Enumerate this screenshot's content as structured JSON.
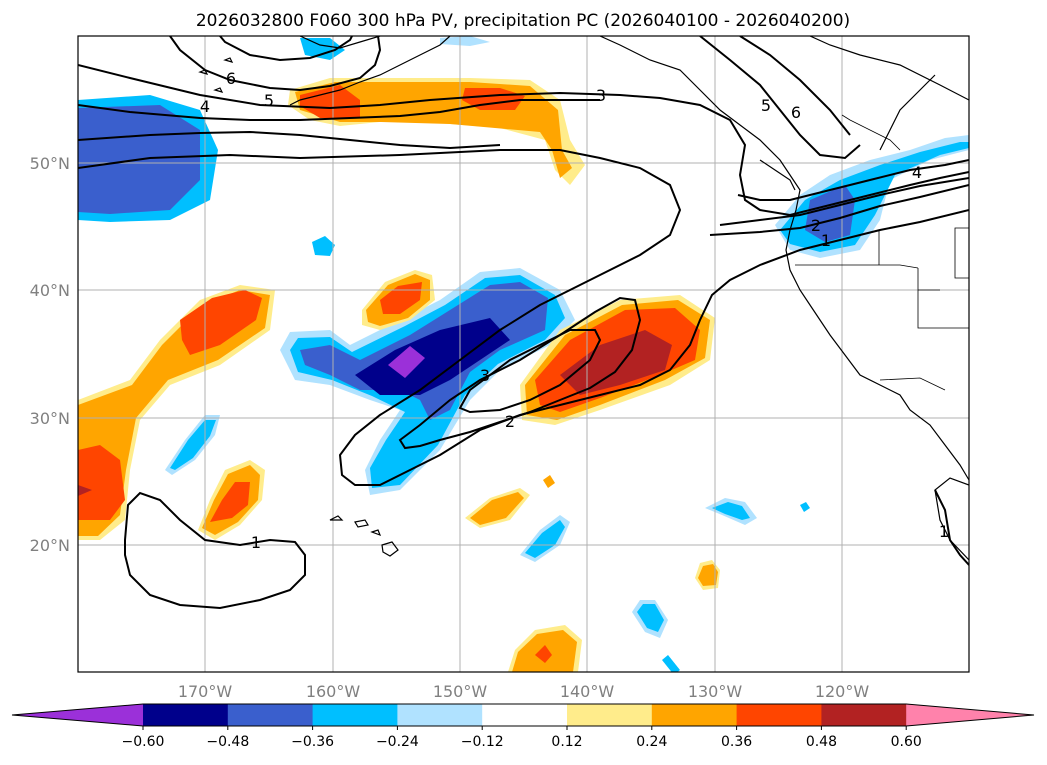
{
  "title": "2026032800 F060 300 hPa PV, precipitation PC (2026040100 - 2026040200)",
  "map": {
    "lon_range": [
      -180,
      -110
    ],
    "lat_range": [
      10,
      60
    ],
    "lat_ticks": [
      "20°N",
      "30°N",
      "40°N",
      "50°N"
    ],
    "lon_ticks": [
      "170°W",
      "160°W",
      "150°W",
      "140°W",
      "130°W",
      "120°W"
    ],
    "grid": true
  },
  "colorbar": {
    "ticks": [
      "−0.60",
      "−0.48",
      "−0.36",
      "−0.24",
      "−0.12",
      "0.12",
      "0.24",
      "0.36",
      "0.48",
      "0.60"
    ],
    "colors": [
      "#9b30d9",
      "#00008b",
      "#3a5fcd",
      "#00bfff",
      "#b0e2ff",
      "#ffffff",
      "#ffec8b",
      "#ffa500",
      "#ff4500",
      "#b22222",
      "#ff82ab"
    ],
    "extend": "both"
  },
  "contour_labels": {
    "l1": "6",
    "l2": "4",
    "l3": "5",
    "l4": "3",
    "l5": "5",
    "l6": "6",
    "l7": "4",
    "l8": "2",
    "l9": "1",
    "l10": "3",
    "l11": "2",
    "l12": "1",
    "l13": "1"
  }
}
